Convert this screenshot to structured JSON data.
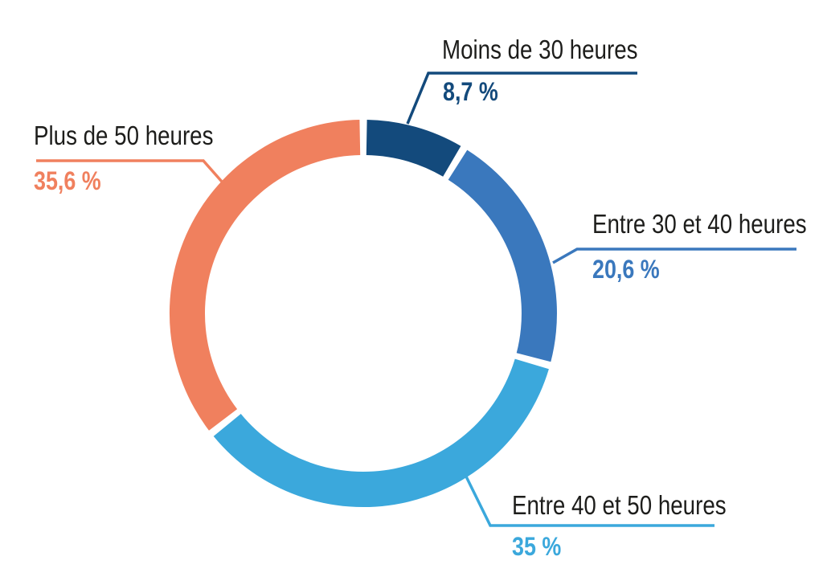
{
  "background": "#ffffff",
  "chart_data": {
    "type": "pie",
    "subtype": "donut",
    "unit": "%",
    "categories": [
      "Moins de 30 heures",
      "Entre 30 et 40 heures",
      "Entre 40 et 50 heures",
      "Plus de 50 heures"
    ],
    "values": [
      8.7,
      20.6,
      35,
      35.6
    ],
    "value_labels": [
      "8,7 %",
      "20,6 %",
      "35 %",
      "35,6 %"
    ],
    "colors": [
      "#134a7c",
      "#3a78bd",
      "#3ba8dc",
      "#f0805e"
    ],
    "start_angle_deg": 0,
    "direction": "clockwise",
    "donut_hole": true,
    "labels_style": "external-callouts",
    "legend_position": "none"
  },
  "slices": [
    {
      "id": "moins-de-30-heures",
      "label": "Moins de 30 heures",
      "value": 8.7,
      "value_label": "8,7 %",
      "color": "#134a7c"
    },
    {
      "id": "entre-30-et-40-heures",
      "label": "Entre 30 et 40 heures",
      "value": 20.6,
      "value_label": "20,6 %",
      "color": "#3a78bd"
    },
    {
      "id": "entre-40-et-50-heures",
      "label": "Entre 40 et 50 heures",
      "value": 35,
      "value_label": "35 %",
      "color": "#3ba8dc"
    },
    {
      "id": "plus-de-50-heures",
      "label": "Plus de 50 heures",
      "value": 35.6,
      "value_label": "35,6 %",
      "color": "#f0805e"
    }
  ]
}
